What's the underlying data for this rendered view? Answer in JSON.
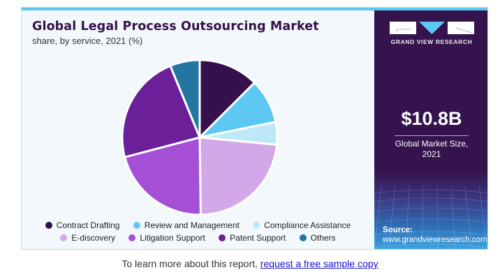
{
  "header": {
    "title": "Global Legal Process Outsourcing Market",
    "subtitle": "share, by service, 2021 (%)"
  },
  "sidebar": {
    "brand": "GRAND VIEW RESEARCH",
    "market_size": "$10.8B",
    "market_size_label_line1": "Global Market Size,",
    "market_size_label_line2": "2021",
    "source_label": "Source:",
    "source_url": "www.grandviewresearch.com"
  },
  "legend": [
    {
      "label": "Contract Drafting",
      "color": "#35104a"
    },
    {
      "label": "Review and Management",
      "color": "#5ec8f4"
    },
    {
      "label": "Compliance Assistance",
      "color": "#bde8f8"
    },
    {
      "label": "E-discovery",
      "color": "#d3a8e8"
    },
    {
      "label": "Litigation Support",
      "color": "#a44fd6"
    },
    {
      "label": "Patent Support",
      "color": "#6b1f98"
    },
    {
      "label": "Others",
      "color": "#23769f"
    }
  ],
  "footer": {
    "text": "To learn more about this report, ",
    "link": "request a free sample copy"
  },
  "chart_data": {
    "type": "pie",
    "title": "Global Legal Process Outsourcing Market",
    "subtitle": "share, by service, 2021 (%)",
    "categories": [
      "Contract Drafting",
      "Review and Management",
      "Compliance Assistance",
      "E-discovery",
      "Litigation Support",
      "Patent Support",
      "Others"
    ],
    "values": [
      12.5,
      9.3,
      4.7,
      23.3,
      21.1,
      22.9,
      6.2
    ],
    "colors": [
      "#35104a",
      "#5ec8f4",
      "#bde8f8",
      "#d3a8e8",
      "#a44fd6",
      "#6b1f98",
      "#23769f"
    ],
    "start_angle": "12 o'clock, clockwise",
    "legend_position": "bottom"
  }
}
